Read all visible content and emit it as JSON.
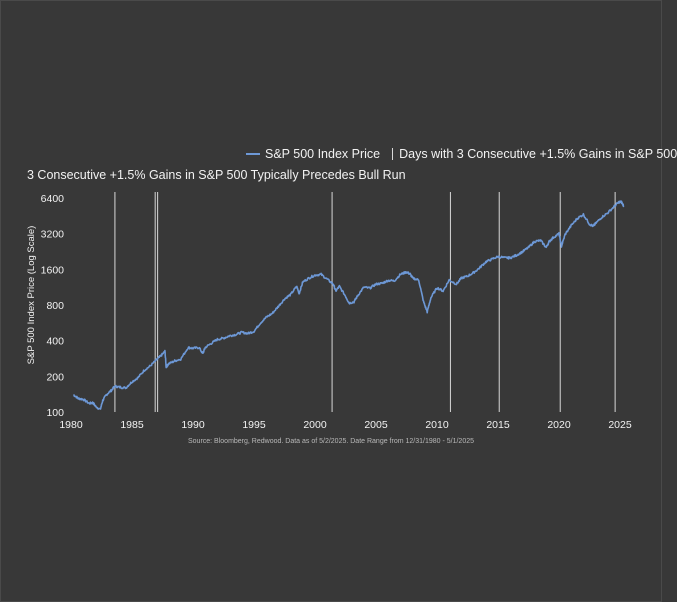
{
  "legend": {
    "series_label": "S&P 500 Index Price",
    "marker_label": "Days with 3 Consecutive +1.5% Gains in S&P 500"
  },
  "source_note": "Source: Bloomberg, Redwood. Data as of 5/2/2025. Date Range from 12/31/1980 - 5/1/2025",
  "colors": {
    "line": "#6d98d6",
    "marker": "#d8d8d8",
    "background": "#383838"
  },
  "chart_data": {
    "type": "line",
    "title": "3 Consecutive +1.5% Gains in S&P 500 Typically Precedes Bull Run",
    "xlabel": "",
    "ylabel": "S&P 500 Index Price (Log Scale)",
    "yscale": "log2",
    "ylim": [
      100,
      6400
    ],
    "xlim": [
      1980,
      2025
    ],
    "xticks": [
      "1980",
      "1985",
      "1990",
      "1995",
      "2000",
      "2005",
      "2010",
      "2015",
      "2020",
      "2025"
    ],
    "yticks": [
      "6400",
      "3200",
      "1600",
      "800",
      "400",
      "200",
      "100"
    ],
    "series": [
      {
        "name": "S&P 500 Index Price",
        "x": [
          1980.2,
          1980.6,
          1981.0,
          1981.5,
          1981.8,
          1982.0,
          1982.4,
          1982.6,
          1982.9,
          1983.3,
          1983.6,
          1984.0,
          1984.5,
          1985.0,
          1985.5,
          1986.0,
          1986.5,
          1987.0,
          1987.4,
          1987.7,
          1987.8,
          1988.0,
          1988.5,
          1989.0,
          1989.6,
          1990.0,
          1990.5,
          1990.8,
          1991.0,
          1991.5,
          1992.0,
          1992.5,
          1993.0,
          1993.5,
          1994.0,
          1994.5,
          1995.0,
          1995.5,
          1996.0,
          1996.5,
          1997.0,
          1997.5,
          1998.0,
          1998.5,
          1998.7,
          1999.0,
          1999.5,
          2000.0,
          2000.5,
          2001.0,
          2001.5,
          2001.7,
          2002.0,
          2002.5,
          2002.8,
          2003.2,
          2003.5,
          2004.0,
          2004.5,
          2005.0,
          2005.5,
          2006.0,
          2006.5,
          2007.0,
          2007.5,
          2007.8,
          2008.0,
          2008.5,
          2008.9,
          2009.2,
          2009.5,
          2010.0,
          2010.5,
          2011.0,
          2011.6,
          2012.0,
          2012.5,
          2013.0,
          2013.5,
          2014.0,
          2014.5,
          2015.0,
          2015.6,
          2016.0,
          2016.5,
          2017.0,
          2017.5,
          2018.0,
          2018.5,
          2018.95,
          2019.2,
          2019.5,
          2020.0,
          2020.2,
          2020.5,
          2021.0,
          2021.5,
          2022.0,
          2022.5,
          2022.8,
          2023.0,
          2023.5,
          2024.0,
          2024.5,
          2024.9,
          2025.1,
          2025.3
        ],
        "values": [
          140,
          130,
          128,
          118,
          120,
          112,
          105,
          125,
          140,
          152,
          165,
          162,
          160,
          180,
          195,
          225,
          245,
          275,
          300,
          325,
          240,
          255,
          270,
          280,
          350,
          345,
          350,
          310,
          350,
          380,
          410,
          420,
          440,
          450,
          470,
          460,
          480,
          560,
          630,
          680,
          780,
          900,
          980,
          1150,
          1000,
          1250,
          1350,
          1430,
          1450,
          1320,
          1200,
          1050,
          1150,
          950,
          830,
          850,
          960,
          1130,
          1110,
          1200,
          1220,
          1290,
          1280,
          1450,
          1520,
          1460,
          1350,
          1300,
          850,
          700,
          920,
          1120,
          1050,
          1300,
          1200,
          1350,
          1400,
          1500,
          1650,
          1850,
          1950,
          2050,
          2000,
          2000,
          2100,
          2250,
          2450,
          2750,
          2800,
          2450,
          2750,
          2950,
          3200,
          2500,
          3150,
          3750,
          4300,
          4650,
          3850,
          3700,
          3900,
          4400,
          4800,
          5400,
          5900,
          5950,
          5500
        ]
      }
    ],
    "marker_years": [
      1983.6,
      1986.9,
      1987.1,
      2001.4,
      2011.1,
      2015.1,
      2020.1,
      2024.6
    ]
  }
}
